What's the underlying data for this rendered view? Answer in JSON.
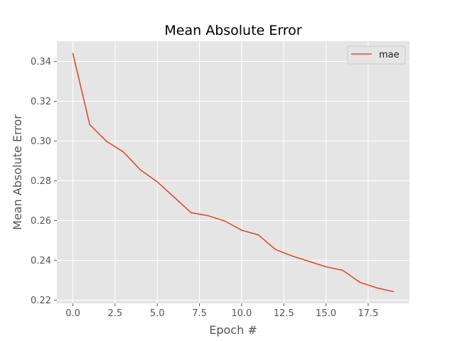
{
  "chart_data": {
    "type": "line",
    "title": "Mean Absolute Error",
    "xlabel": "Epoch #",
    "ylabel": "Mean Absolute Error",
    "xlim": [
      -0.95,
      19.95
    ],
    "ylim": [
      0.2184,
      0.3502
    ],
    "xticks": [
      0.0,
      2.5,
      5.0,
      7.5,
      10.0,
      12.5,
      15.0,
      17.5
    ],
    "xtick_labels": [
      "0.0",
      "2.5",
      "5.0",
      "7.5",
      "10.0",
      "12.5",
      "15.0",
      "17.5"
    ],
    "yticks": [
      0.22,
      0.24,
      0.26,
      0.28,
      0.3,
      0.32,
      0.34
    ],
    "ytick_labels": [
      "0.22",
      "0.24",
      "0.26",
      "0.28",
      "0.30",
      "0.32",
      "0.34"
    ],
    "grid": true,
    "legend_position": "top-right",
    "series": [
      {
        "name": "mae",
        "color": "#E24A33",
        "x": [
          0,
          1,
          2,
          3,
          4,
          5,
          6,
          7,
          8,
          9,
          10,
          11,
          12,
          13,
          14,
          15,
          16,
          17,
          18,
          19
        ],
        "values": [
          0.344,
          0.3082,
          0.2998,
          0.2945,
          0.2855,
          0.2795,
          0.2718,
          0.264,
          0.2625,
          0.2598,
          0.2552,
          0.2528,
          0.2455,
          0.2422,
          0.2395,
          0.2368,
          0.235,
          0.229,
          0.2262,
          0.2243
        ]
      }
    ],
    "colors": {
      "plot_background": "#E5E5E5",
      "grid": "#FFFFFF",
      "tick_text": "#555555"
    }
  }
}
